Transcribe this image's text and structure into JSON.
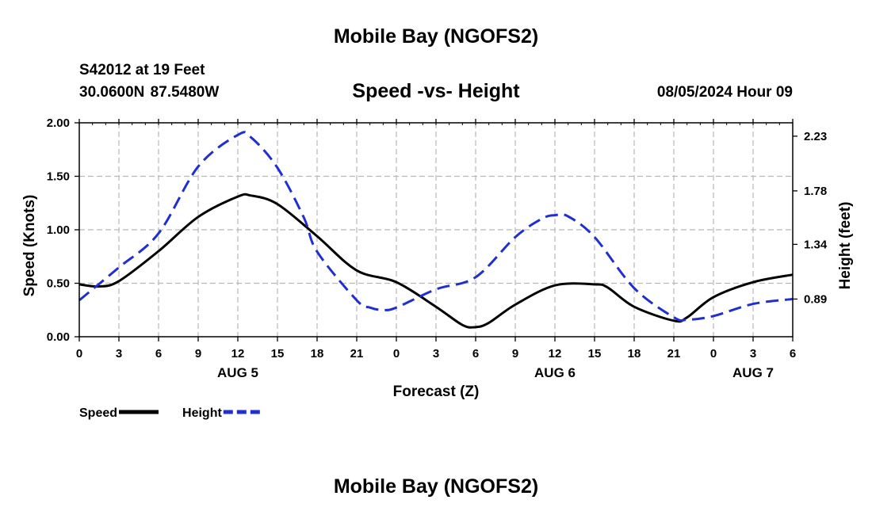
{
  "header": {
    "title": "Mobile Bay (NGOFS2)",
    "station": "S42012 at 19 Feet",
    "coords": "30.0600N  87.5480W",
    "subtitle": "Speed -vs- Height",
    "timestamp": "08/05/2024 Hour 09"
  },
  "footer": {
    "title": "Mobile Bay (NGOFS2)"
  },
  "chart_data": {
    "type": "line",
    "xlabel": "Forecast (Z)",
    "ylabel": "Speed (Knots)",
    "y2label": "Height (feet)",
    "x_range": [
      0,
      54
    ],
    "x_ticks": [
      0,
      3,
      6,
      9,
      12,
      15,
      18,
      21,
      24,
      27,
      30,
      33,
      36,
      39,
      42,
      45,
      48,
      51,
      54
    ],
    "x_tick_labels": [
      "0",
      "3",
      "6",
      "9",
      "12",
      "15",
      "18",
      "21",
      "0",
      "3",
      "6",
      "9",
      "12",
      "15",
      "18",
      "21",
      "0",
      "3",
      "6"
    ],
    "day_labels": [
      {
        "label": "AUG 5",
        "x": 12
      },
      {
        "label": "AUG 6",
        "x": 36
      },
      {
        "label": "AUG 7",
        "x": 51
      }
    ],
    "ylim": [
      0,
      2
    ],
    "y_ticks": [
      0,
      0.5,
      1,
      1.5,
      2
    ],
    "y_tick_labels": [
      "0.00",
      "0.50",
      "1.00",
      "1.50",
      "2.00"
    ],
    "y2lim": [
      0.58,
      2.34
    ],
    "y2_ticks": [
      0.89,
      1.34,
      1.78,
      2.23
    ],
    "y2_tick_labels": [
      "0.89",
      "1.34",
      "1.78",
      "2.23"
    ],
    "series": [
      {
        "name": "Speed",
        "axis": "left",
        "color": "#000000",
        "dashed": false,
        "x": [
          0,
          1.5,
          3,
          6,
          9,
          12,
          13,
          15,
          18,
          21,
          24,
          27,
          29,
          30,
          31,
          33,
          36,
          39,
          40,
          42,
          45,
          46,
          48,
          51,
          54
        ],
        "values": [
          0.49,
          0.47,
          0.52,
          0.8,
          1.12,
          1.31,
          1.32,
          1.24,
          0.94,
          0.62,
          0.51,
          0.28,
          0.11,
          0.09,
          0.13,
          0.3,
          0.48,
          0.49,
          0.46,
          0.28,
          0.15,
          0.18,
          0.37,
          0.51,
          0.58
        ]
      },
      {
        "name": "Height",
        "axis": "right",
        "color": "#1f2fd0",
        "dashed": true,
        "x": [
          0,
          3,
          6,
          9,
          12,
          13,
          15,
          17,
          18,
          21,
          22,
          23,
          24,
          27,
          30,
          33,
          35,
          36,
          37,
          39,
          42,
          45,
          46,
          48,
          51,
          54
        ],
        "values": [
          0.88,
          1.15,
          1.43,
          1.98,
          2.24,
          2.22,
          1.97,
          1.56,
          1.28,
          0.88,
          0.82,
          0.8,
          0.82,
          0.97,
          1.07,
          1.4,
          1.55,
          1.58,
          1.57,
          1.4,
          0.98,
          0.74,
          0.72,
          0.75,
          0.85,
          0.89
        ]
      }
    ],
    "legend": [
      {
        "label": "Speed",
        "color": "#000000",
        "dashed": false
      },
      {
        "label": "Height",
        "color": "#1f2fd0",
        "dashed": true
      }
    ]
  }
}
